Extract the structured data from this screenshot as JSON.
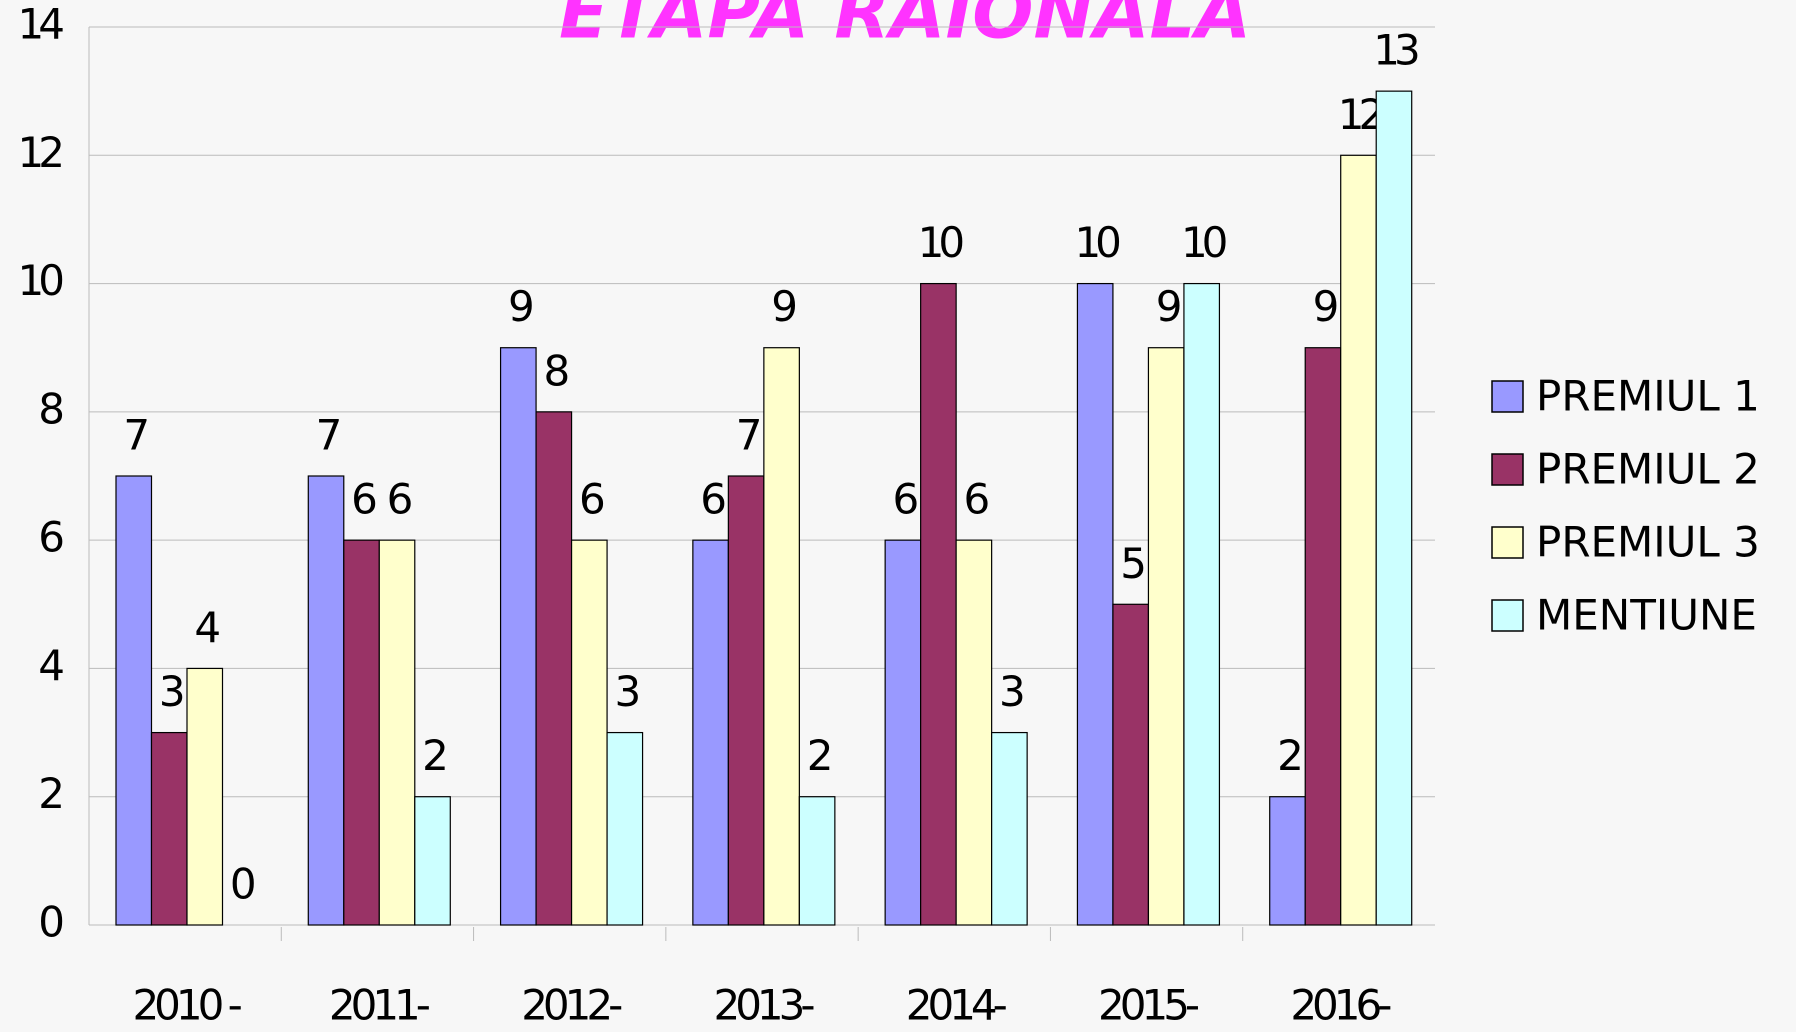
{
  "chart_data": {
    "type": "bar",
    "title": "ETAPA RAIONALA",
    "categories": [
      "2010 -",
      "2011-",
      "2012-",
      "2013-",
      "2014-",
      "2015-",
      "2016-"
    ],
    "series": [
      {
        "name": "PREMIUL 1",
        "color": "#9999ff",
        "values": [
          7,
          7,
          9,
          6,
          6,
          10,
          2
        ]
      },
      {
        "name": "PREMIUL 2",
        "color": "#993366",
        "values": [
          3,
          6,
          8,
          7,
          10,
          5,
          9
        ]
      },
      {
        "name": "PREMIUL 3",
        "color": "#ffffcc",
        "values": [
          4,
          6,
          6,
          9,
          6,
          9,
          12
        ]
      },
      {
        "name": "MENTIUNE",
        "color": "#ccffff",
        "values": [
          0,
          2,
          3,
          2,
          3,
          10,
          13
        ]
      }
    ],
    "ylim": [
      0,
      14
    ],
    "yticks": [
      0,
      2,
      4,
      6,
      8,
      10,
      12,
      14
    ],
    "grid": true,
    "legend": "right"
  }
}
